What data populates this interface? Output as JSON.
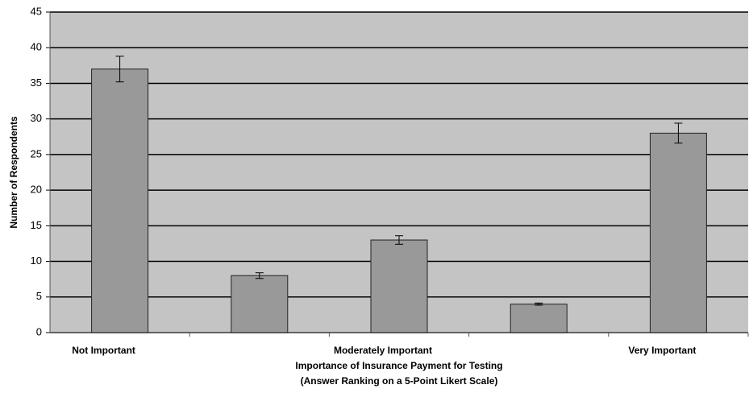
{
  "chart_data": {
    "type": "bar",
    "x_label": [
      "Importance of Insurance Payment for Testing",
      "(Answer Ranking on a 5-Point Likert Scale)"
    ],
    "y_label": "Number of Respondents",
    "categories": [
      "Not Important",
      null,
      "Moderately Important",
      null,
      "Very Important"
    ],
    "values": [
      37,
      8,
      13,
      4,
      28
    ],
    "errors": [
      1.8,
      0.4,
      0.6,
      0.15,
      1.4
    ],
    "color": "#999999",
    "ylim": [
      0,
      45
    ],
    "yticks": [
      0,
      5,
      10,
      15,
      20,
      25,
      30,
      35,
      40,
      45
    ],
    "grid": true
  }
}
